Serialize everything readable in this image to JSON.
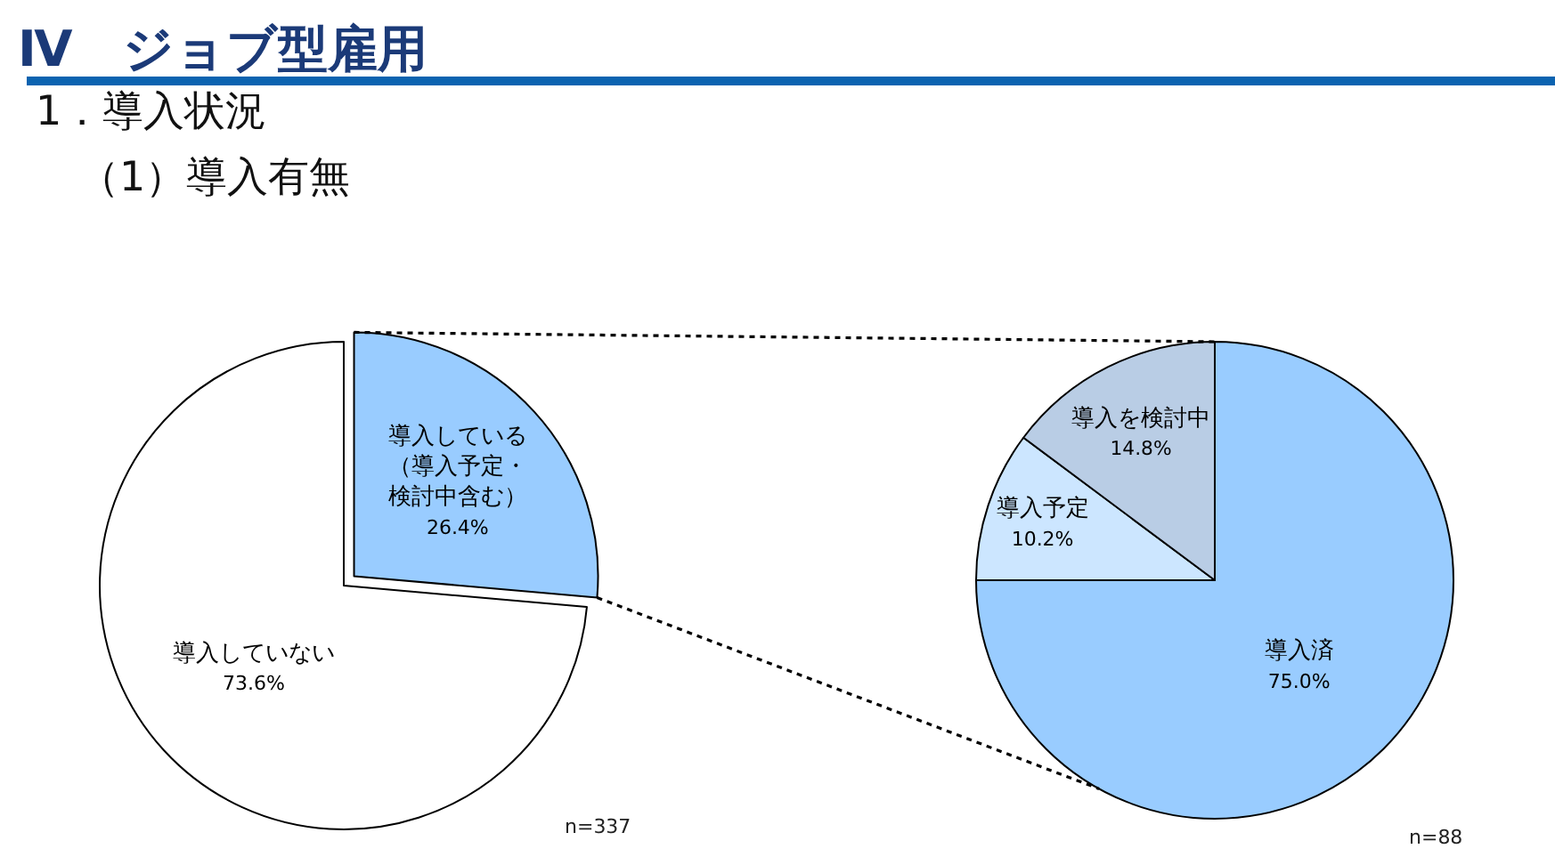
{
  "chart_data": [
    {
      "type": "pie",
      "title": "Ⅳ　ジョブ型雇用",
      "subtitle": "1．導入状況",
      "categories": [
        "導入している（導入予定・検討中含む）",
        "導入していない"
      ],
      "values": [
        26.4,
        73.6
      ],
      "colors": [
        "#99ccff",
        "#ffffff"
      ],
      "value_labels": [
        "26.4%",
        "73.6%"
      ],
      "annotations": [
        "（1）導入有無",
        "n=337"
      ]
    },
    {
      "type": "pie",
      "categories": [
        "導入済",
        "導入予定",
        "導入を検討中"
      ],
      "values": [
        75.0,
        10.2,
        14.8
      ],
      "colors": [
        "#99ccff",
        "#cce6ff",
        "#b9cde5"
      ],
      "value_labels": [
        "75.0%",
        "10.2%",
        "14.8%"
      ],
      "annotations": [
        "n=88"
      ]
    }
  ]
}
